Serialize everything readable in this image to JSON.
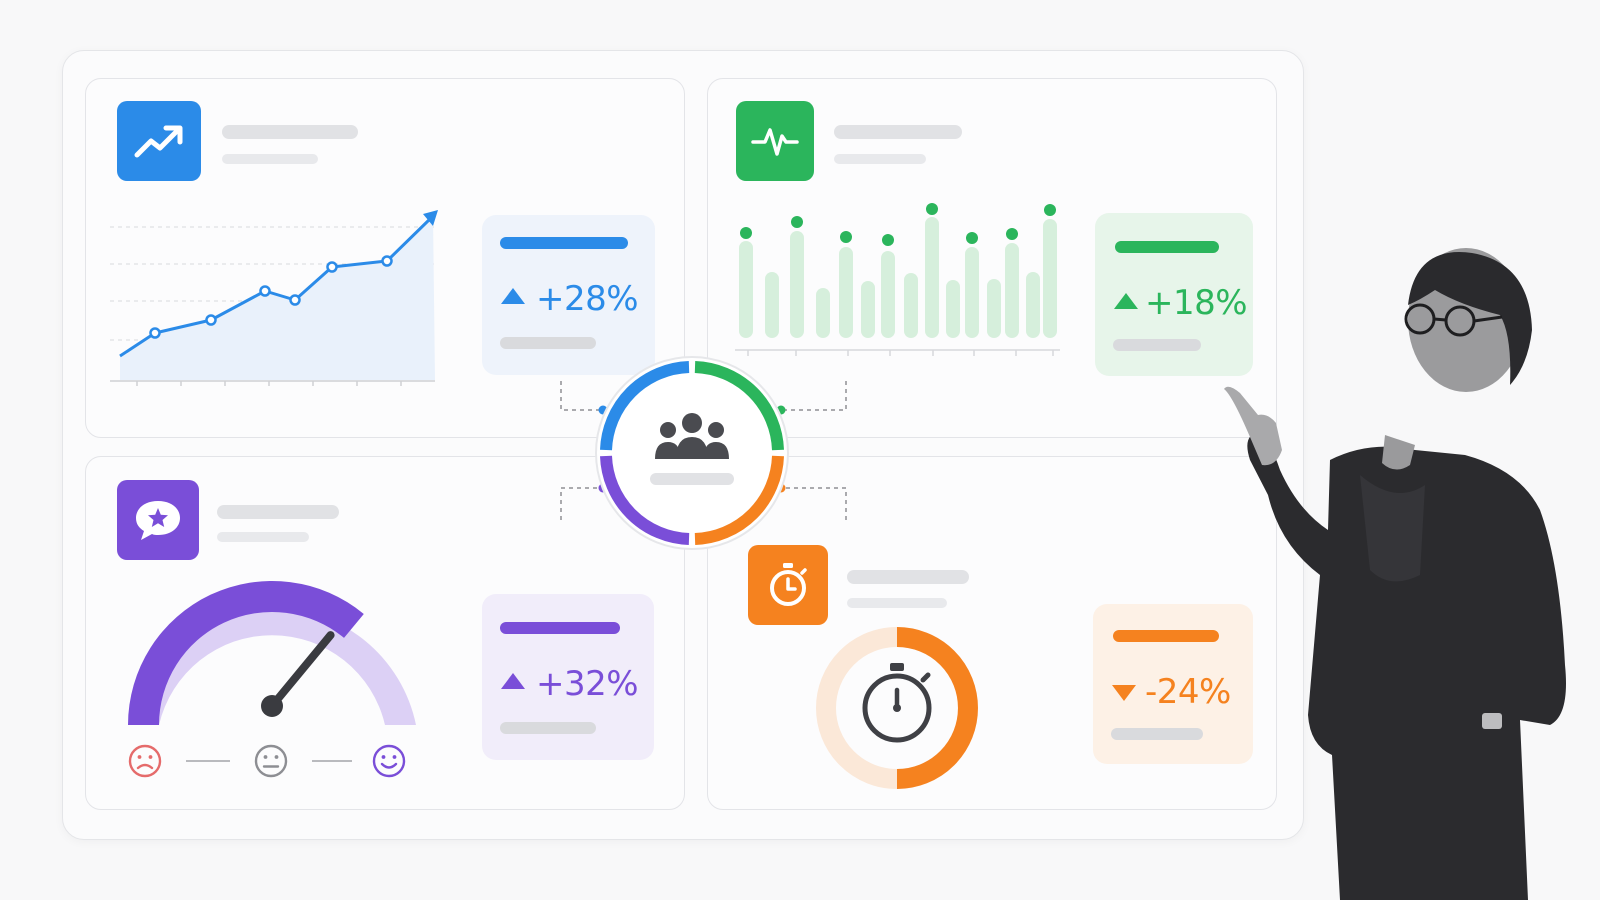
{
  "panels": {
    "growth": {
      "icon": "trend-up-icon",
      "kpi_value": "+28%",
      "kpi_direction": "up",
      "color": "#2b8be8"
    },
    "activity": {
      "icon": "pulse-icon",
      "kpi_value": "+18%",
      "kpi_direction": "up",
      "color": "#2bb55c"
    },
    "satisfaction": {
      "icon": "chat-star-icon",
      "kpi_value": "+32%",
      "kpi_direction": "up",
      "color": "#7a4ed8"
    },
    "time": {
      "icon": "stopwatch-icon",
      "kpi_value": "-24%",
      "kpi_direction": "down",
      "color": "#f5821f"
    }
  },
  "hub": {
    "icon": "team-icon"
  },
  "gauge": {
    "level": 0.72,
    "faces": [
      "sad-face-icon",
      "neutral-face-icon",
      "happy-face-icon"
    ]
  },
  "timer_ring": {
    "fill": 0.5
  }
}
